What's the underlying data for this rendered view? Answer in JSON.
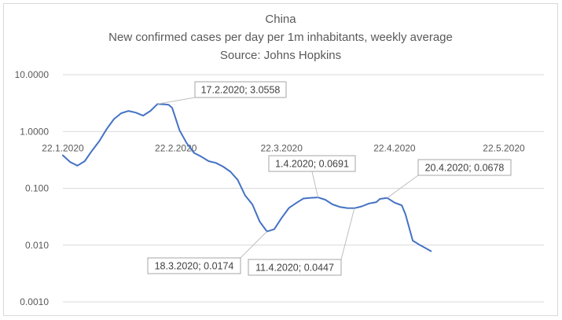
{
  "chart_data": {
    "type": "line",
    "title": "China",
    "subtitle": "New confirmed cases per day per 1m inhabitants, weekly average",
    "source": "Source: Johns Hopkins",
    "xlabel": "",
    "ylabel": "",
    "y_scale": "log",
    "ylim": [
      0.001,
      10
    ],
    "xlim": [
      "2020-01-22",
      "2020-06-02"
    ],
    "x_tick_labels": [
      "22.1.2020",
      "22.2.2020",
      "22.3.2020",
      "22.4.2020",
      "22.5.2020"
    ],
    "x_tick_dates": [
      "2020-01-22",
      "2020-02-22",
      "2020-03-22",
      "2020-04-22",
      "2020-05-22"
    ],
    "y_tick_labels": [
      "10.0000",
      "1.0000",
      "0.100",
      "0.010",
      "0.0010"
    ],
    "y_tick_values": [
      10,
      1,
      0.1,
      0.01,
      0.001
    ],
    "grid": true,
    "series_color": "#4472c4",
    "series": [
      {
        "x": [
          "2020-01-22",
          "2020-01-24",
          "2020-01-26",
          "2020-01-28",
          "2020-01-30",
          "2020-02-01",
          "2020-02-03",
          "2020-02-05",
          "2020-02-07",
          "2020-02-09",
          "2020-02-11",
          "2020-02-13",
          "2020-02-15",
          "2020-02-17",
          "2020-02-19",
          "2020-02-20",
          "2020-02-21",
          "2020-02-23",
          "2020-02-25",
          "2020-02-27",
          "2020-02-29",
          "2020-03-02",
          "2020-03-04",
          "2020-03-06",
          "2020-03-08",
          "2020-03-10",
          "2020-03-12",
          "2020-03-14",
          "2020-03-16",
          "2020-03-18",
          "2020-03-20",
          "2020-03-22",
          "2020-03-24",
          "2020-03-26",
          "2020-03-28",
          "2020-03-30",
          "2020-04-01",
          "2020-04-03",
          "2020-04-05",
          "2020-04-07",
          "2020-04-09",
          "2020-04-11",
          "2020-04-13",
          "2020-04-15",
          "2020-04-17",
          "2020-04-18",
          "2020-04-20",
          "2020-04-22",
          "2020-04-24",
          "2020-04-25",
          "2020-04-27",
          "2020-04-29",
          "2020-05-01",
          "2020-05-02"
        ],
        "values": [
          0.38,
          0.29,
          0.25,
          0.3,
          0.46,
          0.68,
          1.1,
          1.65,
          2.1,
          2.3,
          2.15,
          1.9,
          2.3,
          3.0558,
          3.0,
          2.95,
          2.6,
          1.05,
          0.62,
          0.42,
          0.36,
          0.3,
          0.28,
          0.24,
          0.195,
          0.14,
          0.075,
          0.052,
          0.026,
          0.0174,
          0.019,
          0.03,
          0.045,
          0.055,
          0.066,
          0.068,
          0.0691,
          0.063,
          0.052,
          0.047,
          0.045,
          0.0447,
          0.048,
          0.054,
          0.057,
          0.065,
          0.0678,
          0.056,
          0.05,
          0.035,
          0.012,
          0.01,
          0.0085,
          0.0078
        ]
      }
    ],
    "annotations": [
      {
        "label": "17.2.2020; 3.0558",
        "x": "2020-02-17",
        "y": 3.0558
      },
      {
        "label": "1.4.2020; 0.0691",
        "x": "2020-04-01",
        "y": 0.0691
      },
      {
        "label": "20.4.2020; 0.0678",
        "x": "2020-04-20",
        "y": 0.0678
      },
      {
        "label": "18.3.2020; 0.0174",
        "x": "2020-03-18",
        "y": 0.0174
      },
      {
        "label": "11.4.2020; 0.0447",
        "x": "2020-04-11",
        "y": 0.0447
      }
    ]
  }
}
